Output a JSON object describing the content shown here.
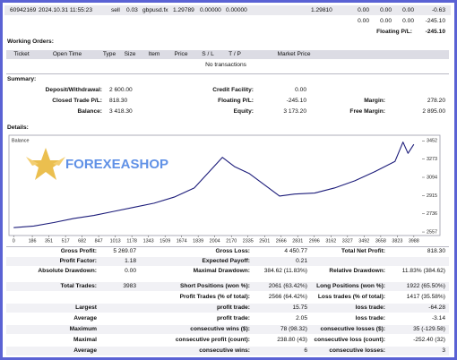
{
  "open_position": [
    "60942169",
    "2024.10.31 11:55:23",
    "sell",
    "0.03",
    "gbpusd.fx",
    "1.29789",
    "0.00000",
    "0.00000",
    "1.29810",
    "0.00",
    "0.00",
    "0.00",
    "-0.63"
  ],
  "totals_row": [
    "0.00",
    "0.00",
    "0.00",
    "-245.10"
  ],
  "floating": {
    "label": "Floating P/L:",
    "value": "-245.10"
  },
  "working_orders": {
    "title": "Working Orders:",
    "columns": [
      "Ticket",
      "Open Time",
      "Type",
      "Size",
      "Item",
      "Price",
      "S / L",
      "T / P",
      "Market Price"
    ],
    "empty": "No transactions"
  },
  "summary": {
    "title": "Summary:",
    "rows": [
      {
        "left": {
          "label": "Deposit/Withdrawal:",
          "value": "2 600.00"
        },
        "middle": {
          "label": "Credit Facility:",
          "value": "0.00"
        }
      },
      {
        "left": {
          "label": "Closed Trade P/L:",
          "value": "818.30"
        },
        "middle": {
          "label": "Floating P/L:",
          "value": "-245.10"
        },
        "right": {
          "label": "Margin:",
          "value": "278.20"
        }
      },
      {
        "left": {
          "label": "Balance:",
          "value": "3 418.30"
        },
        "middle": {
          "label": "Equity:",
          "value": "3 173.20"
        },
        "right": {
          "label": "Free Margin:",
          "value": "2 895.00"
        }
      }
    ]
  },
  "details": {
    "title": "Details:",
    "watermark": "FOREXEASHOP"
  },
  "chart_data": {
    "type": "line",
    "title": "Balance",
    "x": [
      0,
      200,
      400,
      600,
      800,
      1000,
      1200,
      1400,
      1600,
      1800,
      1950,
      2080,
      2200,
      2350,
      2500,
      2650,
      2800,
      3000,
      3200,
      3400,
      3600,
      3800,
      3880,
      3930,
      3988
    ],
    "series": [
      {
        "color": "#1c1c7a",
        "values": [
          2600,
          2615,
          2650,
          2690,
          2720,
          2760,
          2800,
          2840,
          2900,
          2990,
          3150,
          3290,
          3200,
          3130,
          3020,
          2910,
          2930,
          2940,
          2990,
          3060,
          3150,
          3250,
          3440,
          3330,
          3418
        ]
      }
    ],
    "xlim": [
      -20,
      4070
    ],
    "ylim": [
      2540,
      3490
    ],
    "xticks": [
      0,
      186,
      351,
      517,
      682,
      847,
      1013,
      1178,
      1343,
      1509,
      1674,
      1839,
      2004,
      2170,
      2335,
      2501,
      2666,
      2831,
      2996,
      3162,
      3327,
      3492,
      3658,
      3823,
      3988
    ],
    "yticks": [
      2557,
      2736,
      2915,
      3094,
      3273,
      3452
    ]
  },
  "stats": [
    {
      "left": {
        "label": "Gross Profit:",
        "value": "5 269.07"
      },
      "middle": {
        "label": "Gross Loss:",
        "value": "4 450.77"
      },
      "right": {
        "label": "Total Net Profit:",
        "value": "818.30"
      }
    },
    {
      "left": {
        "label": "Profit Factor:",
        "value": "1.18"
      },
      "middle": {
        "label": "Expected Payoff:",
        "value": "0.21"
      }
    },
    {
      "left": {
        "label": "Absolute Drawdown:",
        "value": "0.00"
      },
      "middle": {
        "label": "Maximal Drawdown:",
        "value": "384.62 (11.83%)"
      },
      "right": {
        "label": "Relative Drawdown:",
        "value": "11.83% (384.62)"
      }
    },
    {
      "left": {
        "label": "Total Trades:",
        "value": "3983"
      },
      "middle": {
        "label": "Short Positions (won %):",
        "value": "2061 (63.42%)"
      },
      "right": {
        "label": "Long Positions (won %):",
        "value": "1922 (65.50%)"
      }
    },
    {
      "middle": {
        "label": "Profit Trades (% of total):",
        "value": "2566 (64.42%)"
      },
      "right": {
        "label": "Loss trades (% of total):",
        "value": "1417 (35.58%)"
      }
    },
    {
      "left": {
        "label": "Largest"
      },
      "middle": {
        "label": "profit trade:",
        "value": "15.75"
      },
      "right": {
        "label": "loss trade:",
        "value": "-64.28"
      }
    },
    {
      "left": {
        "label": "Average"
      },
      "middle": {
        "label": "profit trade:",
        "value": "2.05"
      },
      "right": {
        "label": "loss trade:",
        "value": "-3.14"
      }
    },
    {
      "left": {
        "label": "Maximum"
      },
      "middle": {
        "label": "consecutive wins ($):",
        "value": "78 (98.32)"
      },
      "right": {
        "label": "consecutive losses ($):",
        "value": "35 (-129.58)"
      }
    },
    {
      "left": {
        "label": "Maximal"
      },
      "middle": {
        "label": "consecutive profit (count):",
        "value": "238.80 (43)"
      },
      "right": {
        "label": "consecutive loss (count):",
        "value": "-252.40 (32)"
      }
    },
    {
      "left": {
        "label": "Average"
      },
      "middle": {
        "label": "consecutive wins:",
        "value": "6"
      },
      "right": {
        "label": "consecutive losses:",
        "value": "3"
      }
    }
  ]
}
